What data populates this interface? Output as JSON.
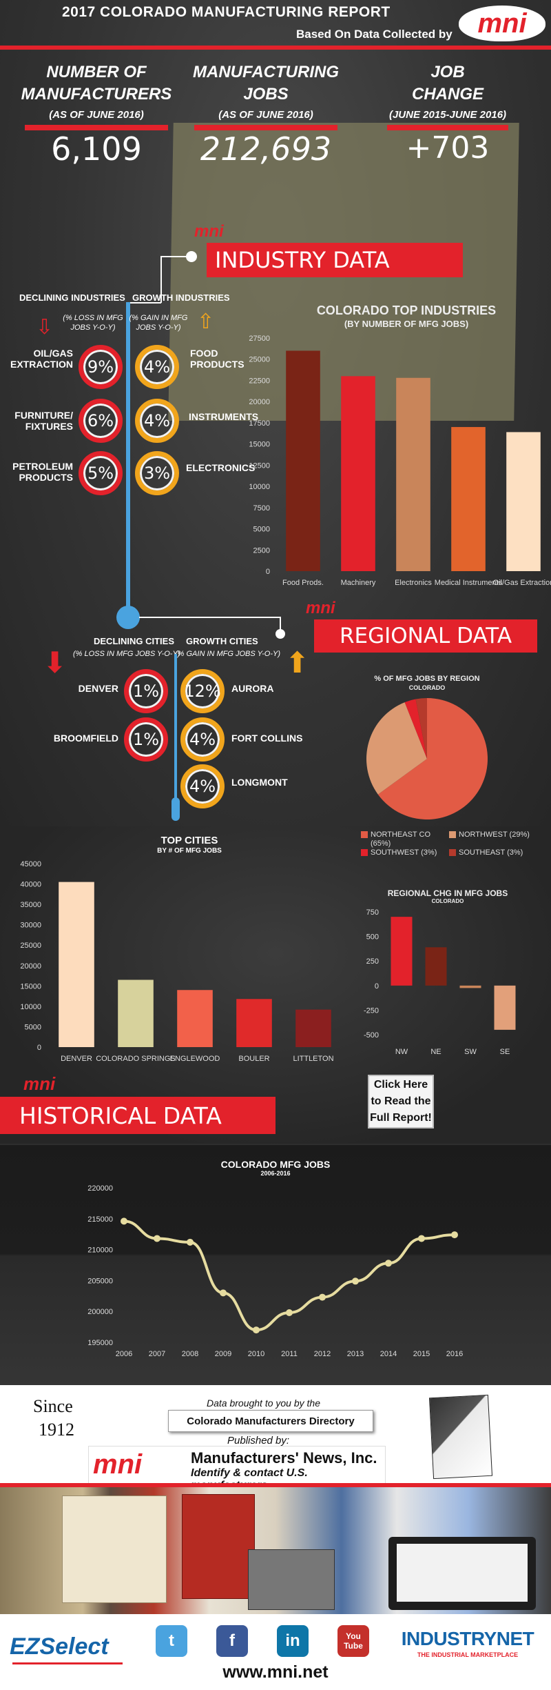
{
  "header": {
    "title": "2017 COLORADO MANUFACTURING REPORT",
    "subtitle": "Based On Data Collected by",
    "logo": "mni"
  },
  "stats": [
    {
      "l1": "NUMBER OF",
      "l2": "MANUFACTURERS",
      "note": "(AS OF JUNE 2016)",
      "value": "6,109"
    },
    {
      "l1": "MANUFACTURING",
      "l2": "JOBS",
      "note": "(AS OF JUNE 2016)",
      "value": "212,693"
    },
    {
      "l1": "JOB",
      "l2": "CHANGE",
      "note": "(JUNE 2015-JUNE 2016)",
      "value": "+703"
    }
  ],
  "industry": {
    "heading": "INDUSTRY DATA",
    "logo": "mni",
    "declining_title": "DECLINING INDUSTRIES",
    "declining_note": "(% LOSS IN MFG JOBS Y-O-Y)",
    "growth_title": "GROWTH INDUSTRIES",
    "growth_note": "(% GAIN IN MFG JOBS Y-O-Y)",
    "declining": [
      {
        "label": "OIL/GAS EXTRACTION",
        "value": "9%"
      },
      {
        "label": "FURNITURE/ FIXTURES",
        "value": "6%"
      },
      {
        "label": "PETROLEUM PRODUCTS",
        "value": "5%"
      }
    ],
    "growth": [
      {
        "label": "FOOD PRODUCTS",
        "value": "4%"
      },
      {
        "label": "INSTRUMENTS",
        "value": "4%"
      },
      {
        "label": "ELECTRONICS",
        "value": "3%"
      }
    ]
  },
  "regional": {
    "heading": "REGIONAL DATA",
    "logo": "mni",
    "declining_title": "DECLINING CITIES",
    "declining_note": "(% LOSS IN MFG JOBS Y-O-Y)",
    "growth_title": "GROWTH CITIES",
    "growth_note": "(% GAIN IN MFG JOBS Y-O-Y)",
    "declining": [
      {
        "label": "DENVER",
        "value": "1%"
      },
      {
        "label": "BROOMFIELD",
        "value": "1%"
      }
    ],
    "growth": [
      {
        "label": "AURORA",
        "value": "12%"
      },
      {
        "label": "FORT COLLINS",
        "value": "4%"
      },
      {
        "label": "LONGMONT",
        "value": "4%"
      }
    ]
  },
  "historical": {
    "heading": "HISTORICAL DATA",
    "logo": "mni",
    "cta": "Click Here to Read the Full Report!"
  },
  "footer": {
    "since": "Since",
    "year": "1912",
    "brought": "Data brought to you by the",
    "directory": "Colorado Manufacturers Directory",
    "published": "Published by:",
    "company": "Manufacturers' News, Inc.",
    "tagline": "Identify & contact U.S. manufacturers",
    "ezselect": "EZSelect",
    "industrynet": "INDUSTRYNET",
    "industrynet_tag": "THE INDUSTRIAL MARKETPLACE",
    "url": "www.mni.net",
    "social": [
      {
        "name": "twitter-icon",
        "glyph": "t",
        "color": "#4aa3df"
      },
      {
        "name": "facebook-icon",
        "glyph": "f",
        "color": "#3b5998"
      },
      {
        "name": "linkedin-icon",
        "glyph": "in",
        "color": "#0e76a8"
      },
      {
        "name": "youtube-icon",
        "glyph": "You Tube",
        "color": "#c4302b"
      }
    ]
  },
  "colors": {
    "brand_red": "#e3222b",
    "gold": "#f1a51c",
    "blue": "#4aa3df"
  },
  "chart_data": [
    {
      "id": "top-industries",
      "type": "bar",
      "title": "COLORADO TOP INDUSTRIES",
      "subtitle": "(BY NUMBER OF MFG JOBS)",
      "categories": [
        "Food Prods.",
        "Machinery",
        "Electronics",
        "Medical Instruments",
        "Oil/Gas Extraction"
      ],
      "values": [
        26000,
        23000,
        22800,
        17000,
        16400
      ],
      "colors": [
        "#7a2416",
        "#e3222b",
        "#c9855a",
        "#e2642c",
        "#fde0c2"
      ],
      "ylim": [
        0,
        27500
      ],
      "yticks": [
        0,
        2500,
        5000,
        7500,
        10000,
        12500,
        15000,
        17500,
        20000,
        22500,
        25000,
        27500
      ],
      "grid": false
    },
    {
      "id": "region-pie",
      "type": "pie",
      "title": "% OF MFG JOBS BY REGION",
      "subtitle": "COLORADO",
      "slices": [
        {
          "name": "NORTHEAST CO (65%)",
          "value": 65,
          "color": "#e25b45"
        },
        {
          "name": "NORTHWEST (29%)",
          "value": 29,
          "color": "#dc9a72"
        },
        {
          "name": "SOUTHWEST (3%)",
          "value": 3,
          "color": "#e3222b"
        },
        {
          "name": "SOUTHEAST (3%)",
          "value": 3,
          "color": "#b53a2c"
        }
      ],
      "legend": "bottom"
    },
    {
      "id": "top-cities",
      "type": "bar",
      "title": "TOP CITIES",
      "subtitle": "BY # OF MFG JOBS",
      "categories": [
        "DENVER",
        "COLORADO SPRINGS",
        "ENGLEWOOD",
        "BOULER",
        "LITTLETON"
      ],
      "values": [
        40500,
        16500,
        14000,
        11800,
        9200
      ],
      "colors": [
        "#fddcbd",
        "#d7d29c",
        "#f2614a",
        "#e02a2a",
        "#8b1f1f"
      ],
      "ylim": [
        0,
        45000
      ],
      "yticks": [
        0,
        5000,
        10000,
        15000,
        20000,
        25000,
        30000,
        35000,
        40000,
        45000
      ],
      "grid": false
    },
    {
      "id": "regional-chg",
      "type": "bar",
      "title": "REGIONAL CHG IN MFG JOBS",
      "subtitle": "COLORADO",
      "categories": [
        "NW",
        "NE",
        "SW",
        "SE"
      ],
      "values": [
        700,
        390,
        -25,
        -450
      ],
      "colors": [
        "#e3222b",
        "#7a2416",
        "#c9855a",
        "#e2a07a"
      ],
      "ylim": [
        -500,
        750
      ],
      "yticks": [
        -500,
        -250,
        0,
        250,
        500,
        750
      ],
      "grid": false
    },
    {
      "id": "historical-jobs",
      "type": "line",
      "title": "COLORADO MFG JOBS",
      "subtitle": "2006-2016",
      "x": [
        "2006",
        "2007",
        "2008",
        "2009",
        "2010",
        "2011",
        "2012",
        "2013",
        "2014",
        "2015",
        "2016"
      ],
      "values": [
        214600,
        211800,
        211200,
        203000,
        197000,
        199800,
        202300,
        204900,
        207800,
        211800,
        212400
      ],
      "color": "#e6dca0",
      "ylim": [
        195000,
        220000
      ],
      "yticks": [
        195000,
        200000,
        205000,
        210000,
        215000,
        220000
      ],
      "grid": false
    }
  ]
}
